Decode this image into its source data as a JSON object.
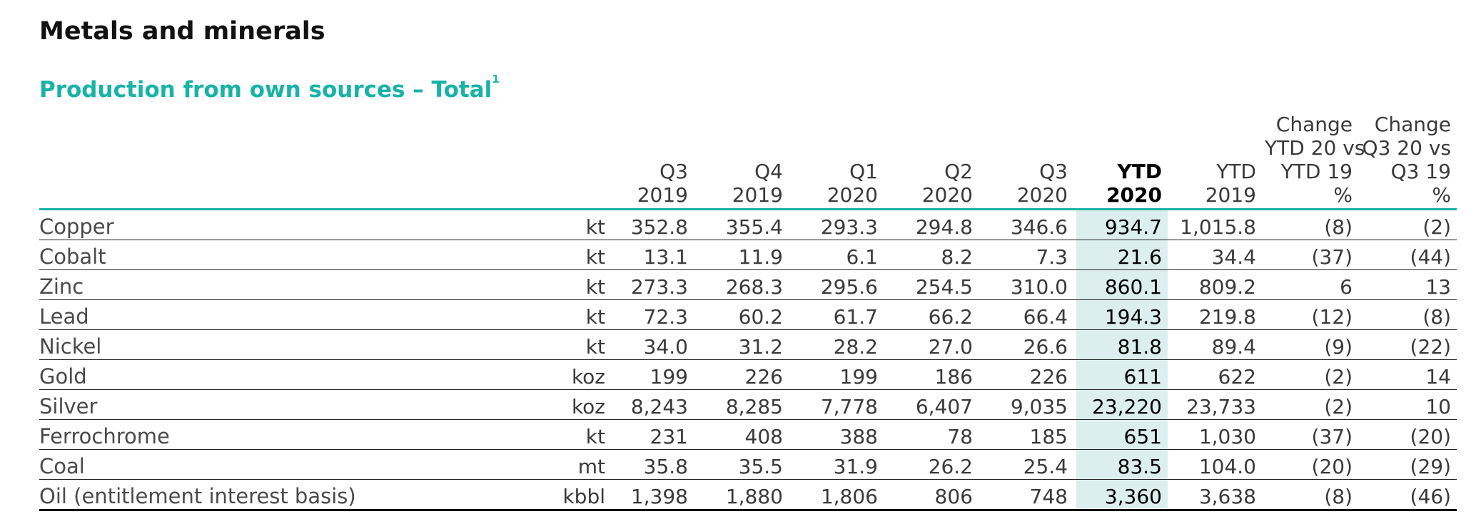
{
  "section_title": "Metals and minerals",
  "table_title": "Production from own sources – Total",
  "table_title_footnote": "1",
  "colors": {
    "accent": "#18b3a6",
    "highlight_band": "#dceeed"
  },
  "columns": [
    {
      "line1": "",
      "line2": "Q3",
      "line3": "2019",
      "line4": ""
    },
    {
      "line1": "",
      "line2": "Q4",
      "line3": "2019",
      "line4": ""
    },
    {
      "line1": "",
      "line2": "Q1",
      "line3": "2020",
      "line4": ""
    },
    {
      "line1": "",
      "line2": "Q2",
      "line3": "2020",
      "line4": ""
    },
    {
      "line1": "",
      "line2": "Q3",
      "line3": "2020",
      "line4": ""
    },
    {
      "line1": "",
      "line2": "YTD",
      "line3": "2020",
      "line4": ""
    },
    {
      "line1": "",
      "line2": "YTD",
      "line3": "2019",
      "line4": ""
    },
    {
      "line1": "Change",
      "line2": "YTD 20 vs",
      "line3": "YTD 19",
      "line4": "%"
    },
    {
      "line1": "Change",
      "line2": "Q3 20 vs",
      "line3": "Q3 19",
      "line4": "%"
    }
  ],
  "rows": [
    {
      "name": "Copper",
      "unit": "kt",
      "values": [
        "352.8",
        "355.4",
        "293.3",
        "294.8",
        "346.6",
        "934.7",
        "1,015.8",
        "(8)",
        "(2)"
      ]
    },
    {
      "name": "Cobalt",
      "unit": "kt",
      "values": [
        "13.1",
        "11.9",
        "6.1",
        "8.2",
        "7.3",
        "21.6",
        "34.4",
        "(37)",
        "(44)"
      ]
    },
    {
      "name": "Zinc",
      "unit": "kt",
      "values": [
        "273.3",
        "268.3",
        "295.6",
        "254.5",
        "310.0",
        "860.1",
        "809.2",
        "6",
        "13"
      ]
    },
    {
      "name": "Lead",
      "unit": "kt",
      "values": [
        "72.3",
        "60.2",
        "61.7",
        "66.2",
        "66.4",
        "194.3",
        "219.8",
        "(12)",
        "(8)"
      ]
    },
    {
      "name": "Nickel",
      "unit": "kt",
      "values": [
        "34.0",
        "31.2",
        "28.2",
        "27.0",
        "26.6",
        "81.8",
        "89.4",
        "(9)",
        "(22)"
      ]
    },
    {
      "name": "Gold",
      "unit": "koz",
      "values": [
        "199",
        "226",
        "199",
        "186",
        "226",
        "611",
        "622",
        "(2)",
        "14"
      ]
    },
    {
      "name": "Silver",
      "unit": "koz",
      "values": [
        "8,243",
        "8,285",
        "7,778",
        "6,407",
        "9,035",
        "23,220",
        "23,733",
        "(2)",
        "10"
      ]
    },
    {
      "name": "Ferrochrome",
      "unit": "kt",
      "values": [
        "231",
        "408",
        "388",
        "78",
        "185",
        "651",
        "1,030",
        "(37)",
        "(20)"
      ]
    },
    {
      "name": "Coal",
      "unit": "mt",
      "values": [
        "35.8",
        "35.5",
        "31.9",
        "26.2",
        "25.4",
        "83.5",
        "104.0",
        "(20)",
        "(29)"
      ]
    },
    {
      "name": "Oil (entitlement interest basis)",
      "unit": "kbbl",
      "values": [
        "1,398",
        "1,880",
        "1,806",
        "806",
        "748",
        "3,360",
        "3,638",
        "(8)",
        "(46)"
      ]
    }
  ]
}
